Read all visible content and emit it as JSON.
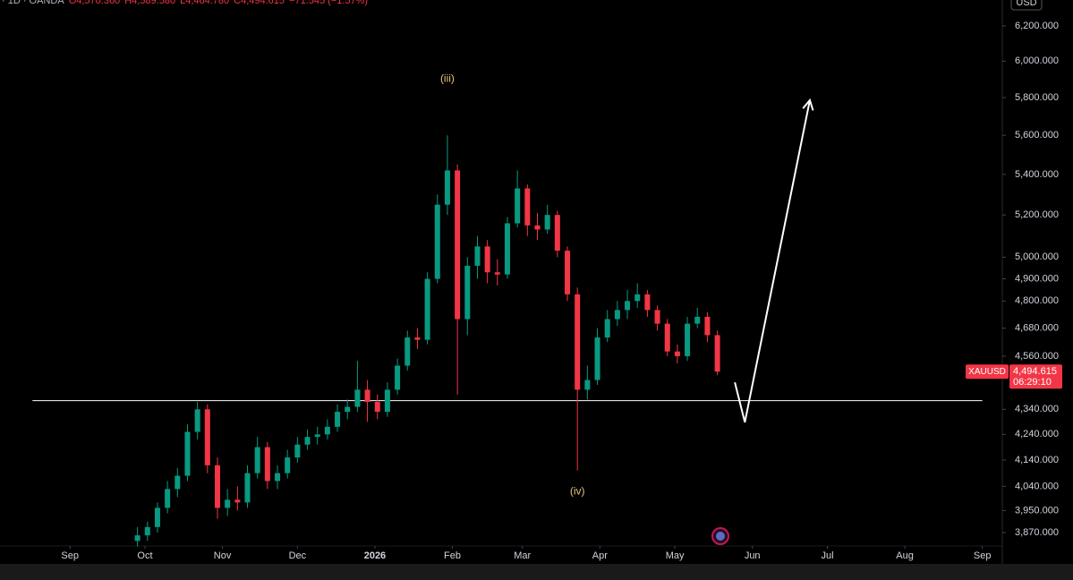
{
  "chart_data": {
    "type": "candlestick",
    "header": {
      "source": "· 1D · OANDA",
      "open": "O4,570.360",
      "high": "H4,589.580",
      "low": "L4,464.780",
      "close": "C4,494.615",
      "change": "−71.545 (−1.57%)"
    },
    "currency": "USD",
    "log_scale": true,
    "up_color": "#089981",
    "down_color": "#f23645",
    "x": [
      27,
      31,
      35,
      39,
      43,
      47,
      51,
      55,
      59,
      63,
      67,
      71,
      75,
      79,
      83,
      87,
      91,
      95,
      99,
      103,
      107,
      111,
      115,
      119,
      123,
      127,
      131,
      135,
      139,
      143,
      147,
      151,
      155,
      159,
      163,
      167,
      171,
      175,
      179,
      183,
      187,
      191,
      195,
      199,
      203,
      207,
      211,
      215,
      219,
      223,
      227,
      231,
      235,
      239,
      243,
      247,
      251,
      255,
      259
    ],
    "open": [
      3840,
      3860,
      3890,
      3960,
      4030,
      4080,
      4250,
      4340,
      4120,
      3960,
      3990,
      3980,
      4090,
      4190,
      4060,
      4090,
      4150,
      4200,
      4230,
      4240,
      4270,
      4330,
      4350,
      4420,
      4370,
      4330,
      4420,
      4520,
      4640,
      4630,
      4900,
      5250,
      5420,
      4720,
      4960,
      5050,
      4930,
      4920,
      5160,
      5330,
      5150,
      5130,
      5200,
      5030,
      4830,
      4420,
      4460,
      4640,
      4720,
      4760,
      4800,
      4830,
      4760,
      4700,
      4580,
      4560,
      4700,
      4730,
      4650
    ],
    "high": [
      3890,
      3910,
      3980,
      4060,
      4110,
      4280,
      4370,
      4360,
      4150,
      4030,
      4040,
      4120,
      4230,
      4210,
      4120,
      4180,
      4230,
      4260,
      4270,
      4300,
      4360,
      4380,
      4540,
      4460,
      4400,
      4450,
      4550,
      4670,
      4680,
      4930,
      5300,
      5600,
      5450,
      5000,
      5100,
      5080,
      4990,
      5190,
      5420,
      5350,
      5210,
      5250,
      5220,
      5050,
      4860,
      4520,
      4680,
      4760,
      4800,
      4850,
      4880,
      4850,
      4780,
      4720,
      4610,
      4730,
      4770,
      4750,
      4670
    ],
    "low": [
      3820,
      3840,
      3870,
      3940,
      4000,
      4060,
      4220,
      4090,
      3920,
      3930,
      3950,
      3960,
      4070,
      4030,
      4030,
      4070,
      4130,
      4180,
      4200,
      4220,
      4250,
      4300,
      4330,
      4290,
      4300,
      4310,
      4400,
      4500,
      4590,
      4610,
      4880,
      5200,
      4400,
      4650,
      4900,
      4880,
      4870,
      4900,
      5140,
      5100,
      5080,
      5110,
      5000,
      4800,
      4100,
      4380,
      4440,
      4620,
      4690,
      4720,
      4770,
      4730,
      4670,
      4560,
      4530,
      4540,
      4680,
      4620,
      4480
    ],
    "close": [
      3860,
      3890,
      3960,
      4030,
      4080,
      4250,
      4340,
      4120,
      3960,
      3990,
      3980,
      4090,
      4190,
      4060,
      4090,
      4150,
      4200,
      4230,
      4240,
      4270,
      4330,
      4350,
      4420,
      4370,
      4330,
      4420,
      4520,
      4640,
      4630,
      4900,
      5250,
      5420,
      4720,
      4960,
      5050,
      4930,
      4920,
      5160,
      5330,
      5150,
      5130,
      5200,
      5030,
      4830,
      4420,
      4460,
      4640,
      4720,
      4760,
      4800,
      4830,
      4760,
      4700,
      4580,
      4560,
      4700,
      4730,
      4650,
      4495
    ],
    "xlim": [
      -28,
      373
    ],
    "xticks": [
      {
        "value": 0,
        "label": "Sep"
      },
      {
        "value": 30,
        "label": "Oct"
      },
      {
        "value": 61,
        "label": "Nov"
      },
      {
        "value": 91,
        "label": "Dec"
      },
      {
        "value": 122,
        "label": "2026"
      },
      {
        "value": 153,
        "label": "Feb"
      },
      {
        "value": 181,
        "label": "Mar"
      },
      {
        "value": 212,
        "label": "Apr"
      },
      {
        "value": 242,
        "label": "May"
      },
      {
        "value": 273,
        "label": "Jun"
      },
      {
        "value": 303,
        "label": "Jul"
      },
      {
        "value": 334,
        "label": "Aug"
      },
      {
        "value": 365,
        "label": "Sep"
      }
    ],
    "ylim": [
      3822,
      6351
    ],
    "yticks": [
      {
        "value": 6200,
        "label": "6,200.000"
      },
      {
        "value": 6000,
        "label": "6,000.000"
      },
      {
        "value": 5800,
        "label": "5,800.000"
      },
      {
        "value": 5600,
        "label": "5,600.000"
      },
      {
        "value": 5400,
        "label": "5,400.000"
      },
      {
        "value": 5200,
        "label": "5,200.000"
      },
      {
        "value": 5000,
        "label": "5,000.000"
      },
      {
        "value": 4900,
        "label": "4,900.000"
      },
      {
        "value": 4800,
        "label": "4,800.000"
      },
      {
        "value": 4680,
        "label": "4,680.000"
      },
      {
        "value": 4560,
        "label": "4,560.000"
      },
      {
        "value": 4340,
        "label": "4,340.000"
      },
      {
        "value": 4240,
        "label": "4,240.000"
      },
      {
        "value": 4140,
        "label": "4,140.000"
      },
      {
        "value": 4040,
        "label": "4,040.000"
      },
      {
        "value": 3950,
        "label": "3,950.000"
      },
      {
        "value": 3870,
        "label": "3,870.000"
      }
    ],
    "annotations": [
      {
        "text": "(iii)",
        "x": 151,
        "y": 5900
      },
      {
        "text": "(iv)",
        "x": 203,
        "y": 4020
      }
    ],
    "support_line": {
      "value": 4375,
      "x": [
        -15,
        365
      ],
      "color": "#ffffff"
    },
    "projection": {
      "x": [
        266,
        270,
        296
      ],
      "values": [
        4450,
        4288,
        5786
      ],
      "color": "#ffffff"
    },
    "price_label": {
      "symbol": "XAUUSD",
      "value": 4494.615,
      "label": "4,494.615",
      "countdown": "06:29:10"
    }
  }
}
